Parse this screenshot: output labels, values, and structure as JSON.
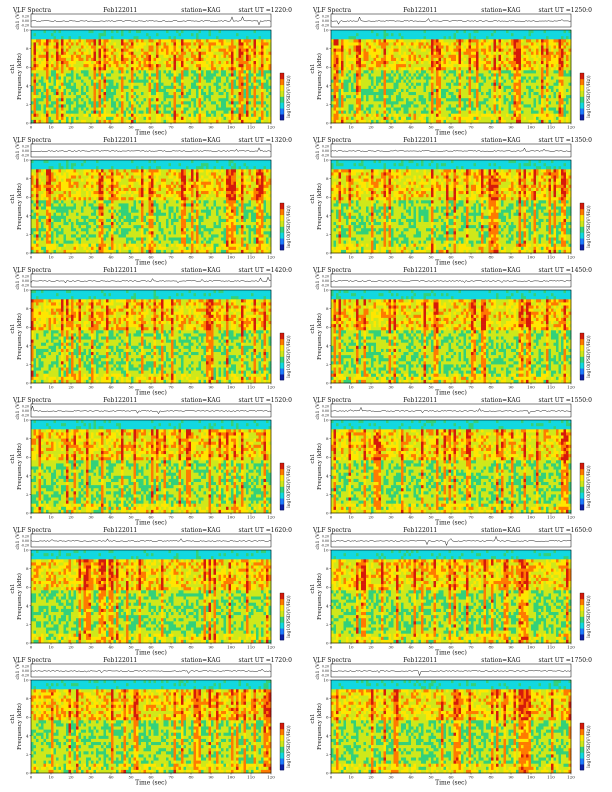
{
  "chart_data": {
    "type": "heatmap",
    "layout": "6 rows x 2 columns of spectrogram panels",
    "shared": {
      "title_prefix": "VLF Spectra",
      "date": "Feb122011",
      "station": "station=KAG",
      "start_label": "start  UT  =",
      "xlabel": "Time  (sec)",
      "ylabel": "Frequency  (kHz)",
      "ylabel_prefix": "ch1",
      "trace_ylabel": "ch1 (V)",
      "trace_ticks": [
        "0.20",
        "0.00",
        "-0.20"
      ],
      "colorbar_label": "log10(PSD(V²/Hz))",
      "xlim": [
        0,
        120
      ],
      "xticks": [
        "0",
        "10",
        "20",
        "30",
        "40",
        "50",
        "60",
        "70",
        "80",
        "90",
        "100",
        "110",
        "120"
      ],
      "ylim": [
        0,
        10
      ],
      "yticks": [
        "0",
        "2",
        "4",
        "6",
        "8",
        "10"
      ],
      "colormap": [
        "#0b1fa8",
        "#1e7bff",
        "#12d8e0",
        "#33d17a",
        "#cfe81a",
        "#ffe600",
        "#ff7a00",
        "#d61a0a"
      ]
    },
    "panels": [
      {
        "start_ut": "1220:0",
        "seed": 11
      },
      {
        "start_ut": "1250:0",
        "seed": 23
      },
      {
        "start_ut": "1320:0",
        "seed": 37
      },
      {
        "start_ut": "1350:0",
        "seed": 41
      },
      {
        "start_ut": "1420:0",
        "seed": 53
      },
      {
        "start_ut": "1450:0",
        "seed": 67
      },
      {
        "start_ut": "1520:0",
        "seed": 71
      },
      {
        "start_ut": "1550:0",
        "seed": 83
      },
      {
        "start_ut": "1620:0",
        "seed": 97
      },
      {
        "start_ut": "1650:0",
        "seed": 101
      },
      {
        "start_ut": "1720:0",
        "seed": 113
      },
      {
        "start_ut": "1750:0",
        "seed": 127
      }
    ]
  }
}
